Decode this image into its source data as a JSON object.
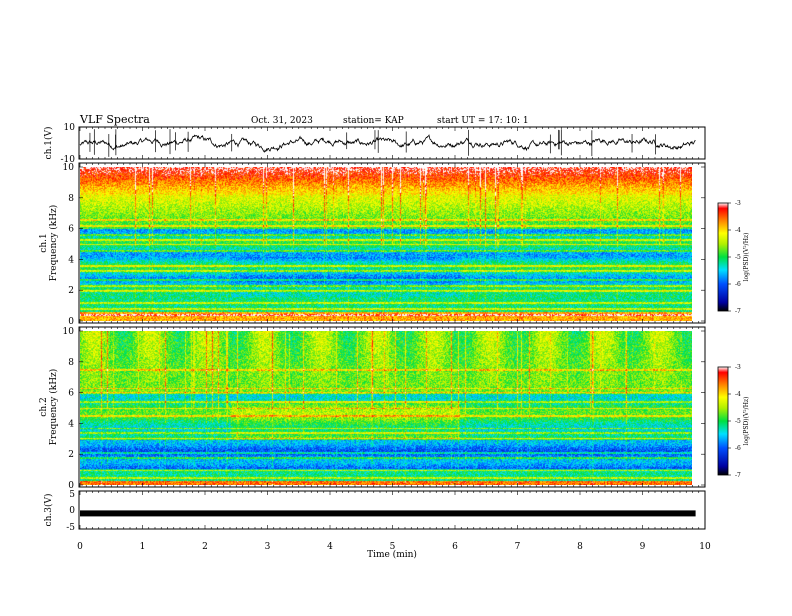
{
  "header": {
    "title": "VLF Spectra",
    "date": "Oct. 31, 2023",
    "station": "station= KAP",
    "start": "start  UT =   17: 10: 1"
  },
  "chart_data": [
    {
      "type": "line",
      "panel": "ch1-waveform",
      "ylabel": "ch.1(V)",
      "ylim": [
        -10,
        10
      ],
      "yticks": [
        "10",
        "-10"
      ],
      "xlim": [
        0,
        10
      ],
      "color": "#000000"
    },
    {
      "type": "heatmap",
      "panel": "ch1-spectrogram",
      "ylabel": "ch.1\nFrequency (kHz)",
      "ylabel_top": "ch.1",
      "ylabel_main": "Frequency (kHz)",
      "ylim": [
        0,
        10
      ],
      "yticks": [
        "0",
        "2",
        "4",
        "6",
        "8",
        "10"
      ],
      "xlim": [
        0,
        9.85
      ],
      "colorbar": {
        "label": "log(PSD)(V²/Hz)",
        "range": [
          -7,
          -3
        ],
        "ticks": [
          "-3",
          "-4",
          "-5",
          "-6",
          "-7"
        ]
      }
    },
    {
      "type": "heatmap",
      "panel": "ch2-spectrogram",
      "ylabel_top": "ch.2",
      "ylabel_main": "Frequency (kHz)",
      "ylim": [
        0,
        10
      ],
      "yticks": [
        "0",
        "2",
        "4",
        "6",
        "8",
        "10"
      ],
      "xlim": [
        0,
        9.85
      ],
      "colorbar": {
        "label": "log(PSD)(V²/Hz)",
        "range": [
          -7,
          -3
        ],
        "ticks": [
          "-3",
          "-4",
          "-5",
          "-6",
          "-7"
        ]
      }
    },
    {
      "type": "line",
      "panel": "ch3-waveform",
      "ylabel": "ch.3(V)",
      "ylim": [
        -5,
        5
      ],
      "yticks": [
        "5",
        "0",
        "-5"
      ],
      "level": -1.0,
      "xlim": [
        0,
        9.85
      ],
      "color": "#000000"
    }
  ],
  "xaxis": {
    "label": "Time (min)",
    "range": [
      0,
      10
    ],
    "ticks": [
      "0",
      "1",
      "2",
      "3",
      "4",
      "5",
      "6",
      "7",
      "8",
      "9",
      "10"
    ]
  }
}
